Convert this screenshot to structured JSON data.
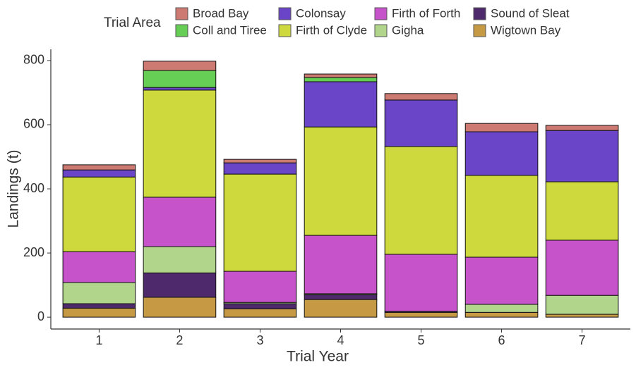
{
  "chart_data": {
    "type": "stacked_bar",
    "x_label": "Trial Year",
    "y_label": "Landings (t)",
    "legend_title": "Trial Area",
    "categories": [
      1,
      2,
      3,
      4,
      5,
      6,
      7
    ],
    "ylim": [
      -37,
      835
    ],
    "yticks": [
      0,
      200,
      400,
      600,
      800
    ],
    "grid": false,
    "legend": "top",
    "series": [
      {
        "name": "Broad Bay",
        "color": "#cd7a72",
        "values": [
          16,
          29,
          11,
          11,
          20,
          26,
          16
        ]
      },
      {
        "name": "Coll and Tiree",
        "color": "#66cd55",
        "values": [
          0,
          53,
          0,
          13,
          0,
          0,
          0
        ]
      },
      {
        "name": "Colonsay",
        "color": "#6a45c8",
        "values": [
          22,
          8,
          35,
          141,
          145,
          136,
          160
        ]
      },
      {
        "name": "Firth of Clyde",
        "color": "#cdd93c",
        "values": [
          233,
          334,
          303,
          338,
          336,
          255,
          182
        ]
      },
      {
        "name": "Firth of Forth",
        "color": "#c653c9",
        "values": [
          96,
          154,
          97,
          182,
          178,
          147,
          172
        ]
      },
      {
        "name": "Gigha",
        "color": "#b1d68b",
        "values": [
          66,
          82,
          4,
          3,
          0,
          25,
          59
        ]
      },
      {
        "name": "Sound of Sleat",
        "color": "#4e2a6c",
        "values": [
          14,
          76,
          16,
          15,
          3,
          0,
          0
        ]
      },
      {
        "name": "Wigtown Bay",
        "color": "#c69a45",
        "values": [
          28,
          62,
          26,
          55,
          15,
          15,
          9
        ]
      }
    ]
  }
}
